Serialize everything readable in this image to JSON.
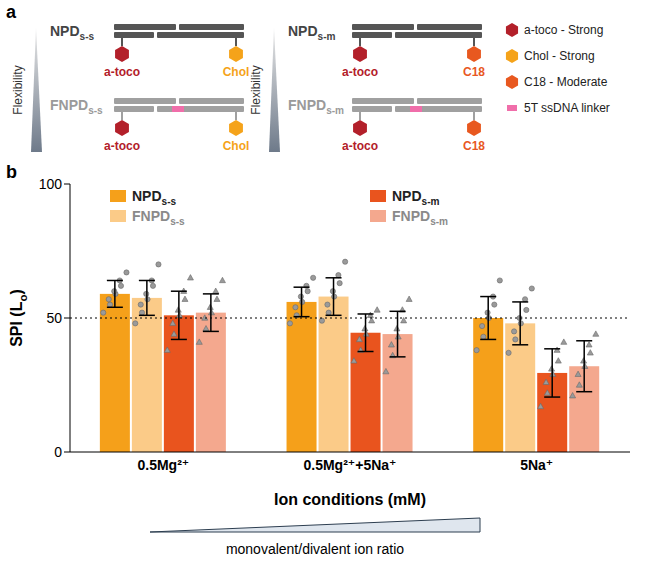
{
  "diagram": {
    "panel_label": "a",
    "flexibility_label": "Flexibility",
    "constructs": [
      {
        "name": "NPDs-s",
        "flexible": false,
        "anchors": [
          "a-toco",
          "Chol"
        ]
      },
      {
        "name": "FNPDs-s",
        "flexible": true,
        "anchors": [
          "a-toco",
          "Chol"
        ]
      },
      {
        "name": "NPDs-m",
        "flexible": false,
        "anchors": [
          "a-toco",
          "C18"
        ]
      },
      {
        "name": "FNPDs-m",
        "flexible": true,
        "anchors": [
          "a-toco",
          "C18"
        ]
      }
    ],
    "legend": [
      {
        "anchor": "a-toco",
        "text": "a-toco - Strong",
        "color": "#b3202a"
      },
      {
        "anchor": "Chol",
        "text": "Chol - Strong",
        "color": "#f5a31a"
      },
      {
        "anchor": "C18",
        "text": "C18 - Moderate",
        "color": "#e8581f"
      },
      {
        "text": "5T ssDNA linker",
        "color": "#f06eaa"
      }
    ]
  },
  "chart_data": {
    "type": "bar",
    "panel_label": "b",
    "y_label": "SPI (Lo)",
    "x_label": "Ion conditions (mM)",
    "annotation": "monovalent/divalent ion ratio",
    "categories": [
      "0.5Mg²⁺",
      "0.5Mg²⁺+5Na⁺",
      "5Na⁺"
    ],
    "ylim": [
      0,
      100
    ],
    "yticks": [
      0,
      50,
      100
    ],
    "reference_line": 50,
    "legend": "top",
    "series": [
      {
        "name": "NPDs-s",
        "color": "#f5a01a",
        "marker": "circle",
        "values": [
          59,
          56,
          50
        ],
        "errors": [
          5,
          5.5,
          8
        ],
        "points": [
          [
            52,
            55,
            57,
            59,
            60,
            62,
            64,
            67
          ],
          [
            48,
            51,
            54,
            56,
            58,
            60,
            62,
            65
          ],
          [
            38,
            43,
            47,
            50,
            52,
            55,
            58,
            64
          ]
        ]
      },
      {
        "name": "FNPDs-s",
        "color": "#fbcb88",
        "marker": "circle",
        "values": [
          57.5,
          58,
          48
        ],
        "errors": [
          6.5,
          7,
          8
        ],
        "points": [
          [
            48,
            52,
            55,
            57,
            59,
            62,
            64,
            70
          ],
          [
            49,
            52,
            55,
            58,
            60,
            63,
            66,
            71
          ],
          [
            37,
            42,
            45,
            48,
            50,
            53,
            57,
            61
          ]
        ]
      },
      {
        "name": "NPDs-m",
        "color": "#e9541e",
        "marker": "triangle",
        "values": [
          51,
          44.5,
          29.5
        ],
        "errors": [
          9,
          7,
          9
        ],
        "points": [
          [
            38,
            44,
            48,
            51,
            53,
            57,
            60,
            65
          ],
          [
            34,
            38,
            42,
            44,
            46,
            49,
            51,
            53
          ],
          [
            17,
            22,
            26,
            29,
            31,
            34,
            38,
            41
          ]
        ]
      },
      {
        "name": "FNPDs-m",
        "color": "#f4a88e",
        "marker": "triangle",
        "values": [
          52,
          44,
          32
        ],
        "errors": [
          7,
          8.5,
          9.5
        ],
        "points": [
          [
            41,
            46,
            50,
            52,
            54,
            57,
            60,
            64
          ],
          [
            30,
            36,
            40,
            43,
            46,
            49,
            53,
            57
          ],
          [
            21,
            25,
            29,
            32,
            34,
            37,
            40,
            44
          ]
        ]
      }
    ]
  }
}
